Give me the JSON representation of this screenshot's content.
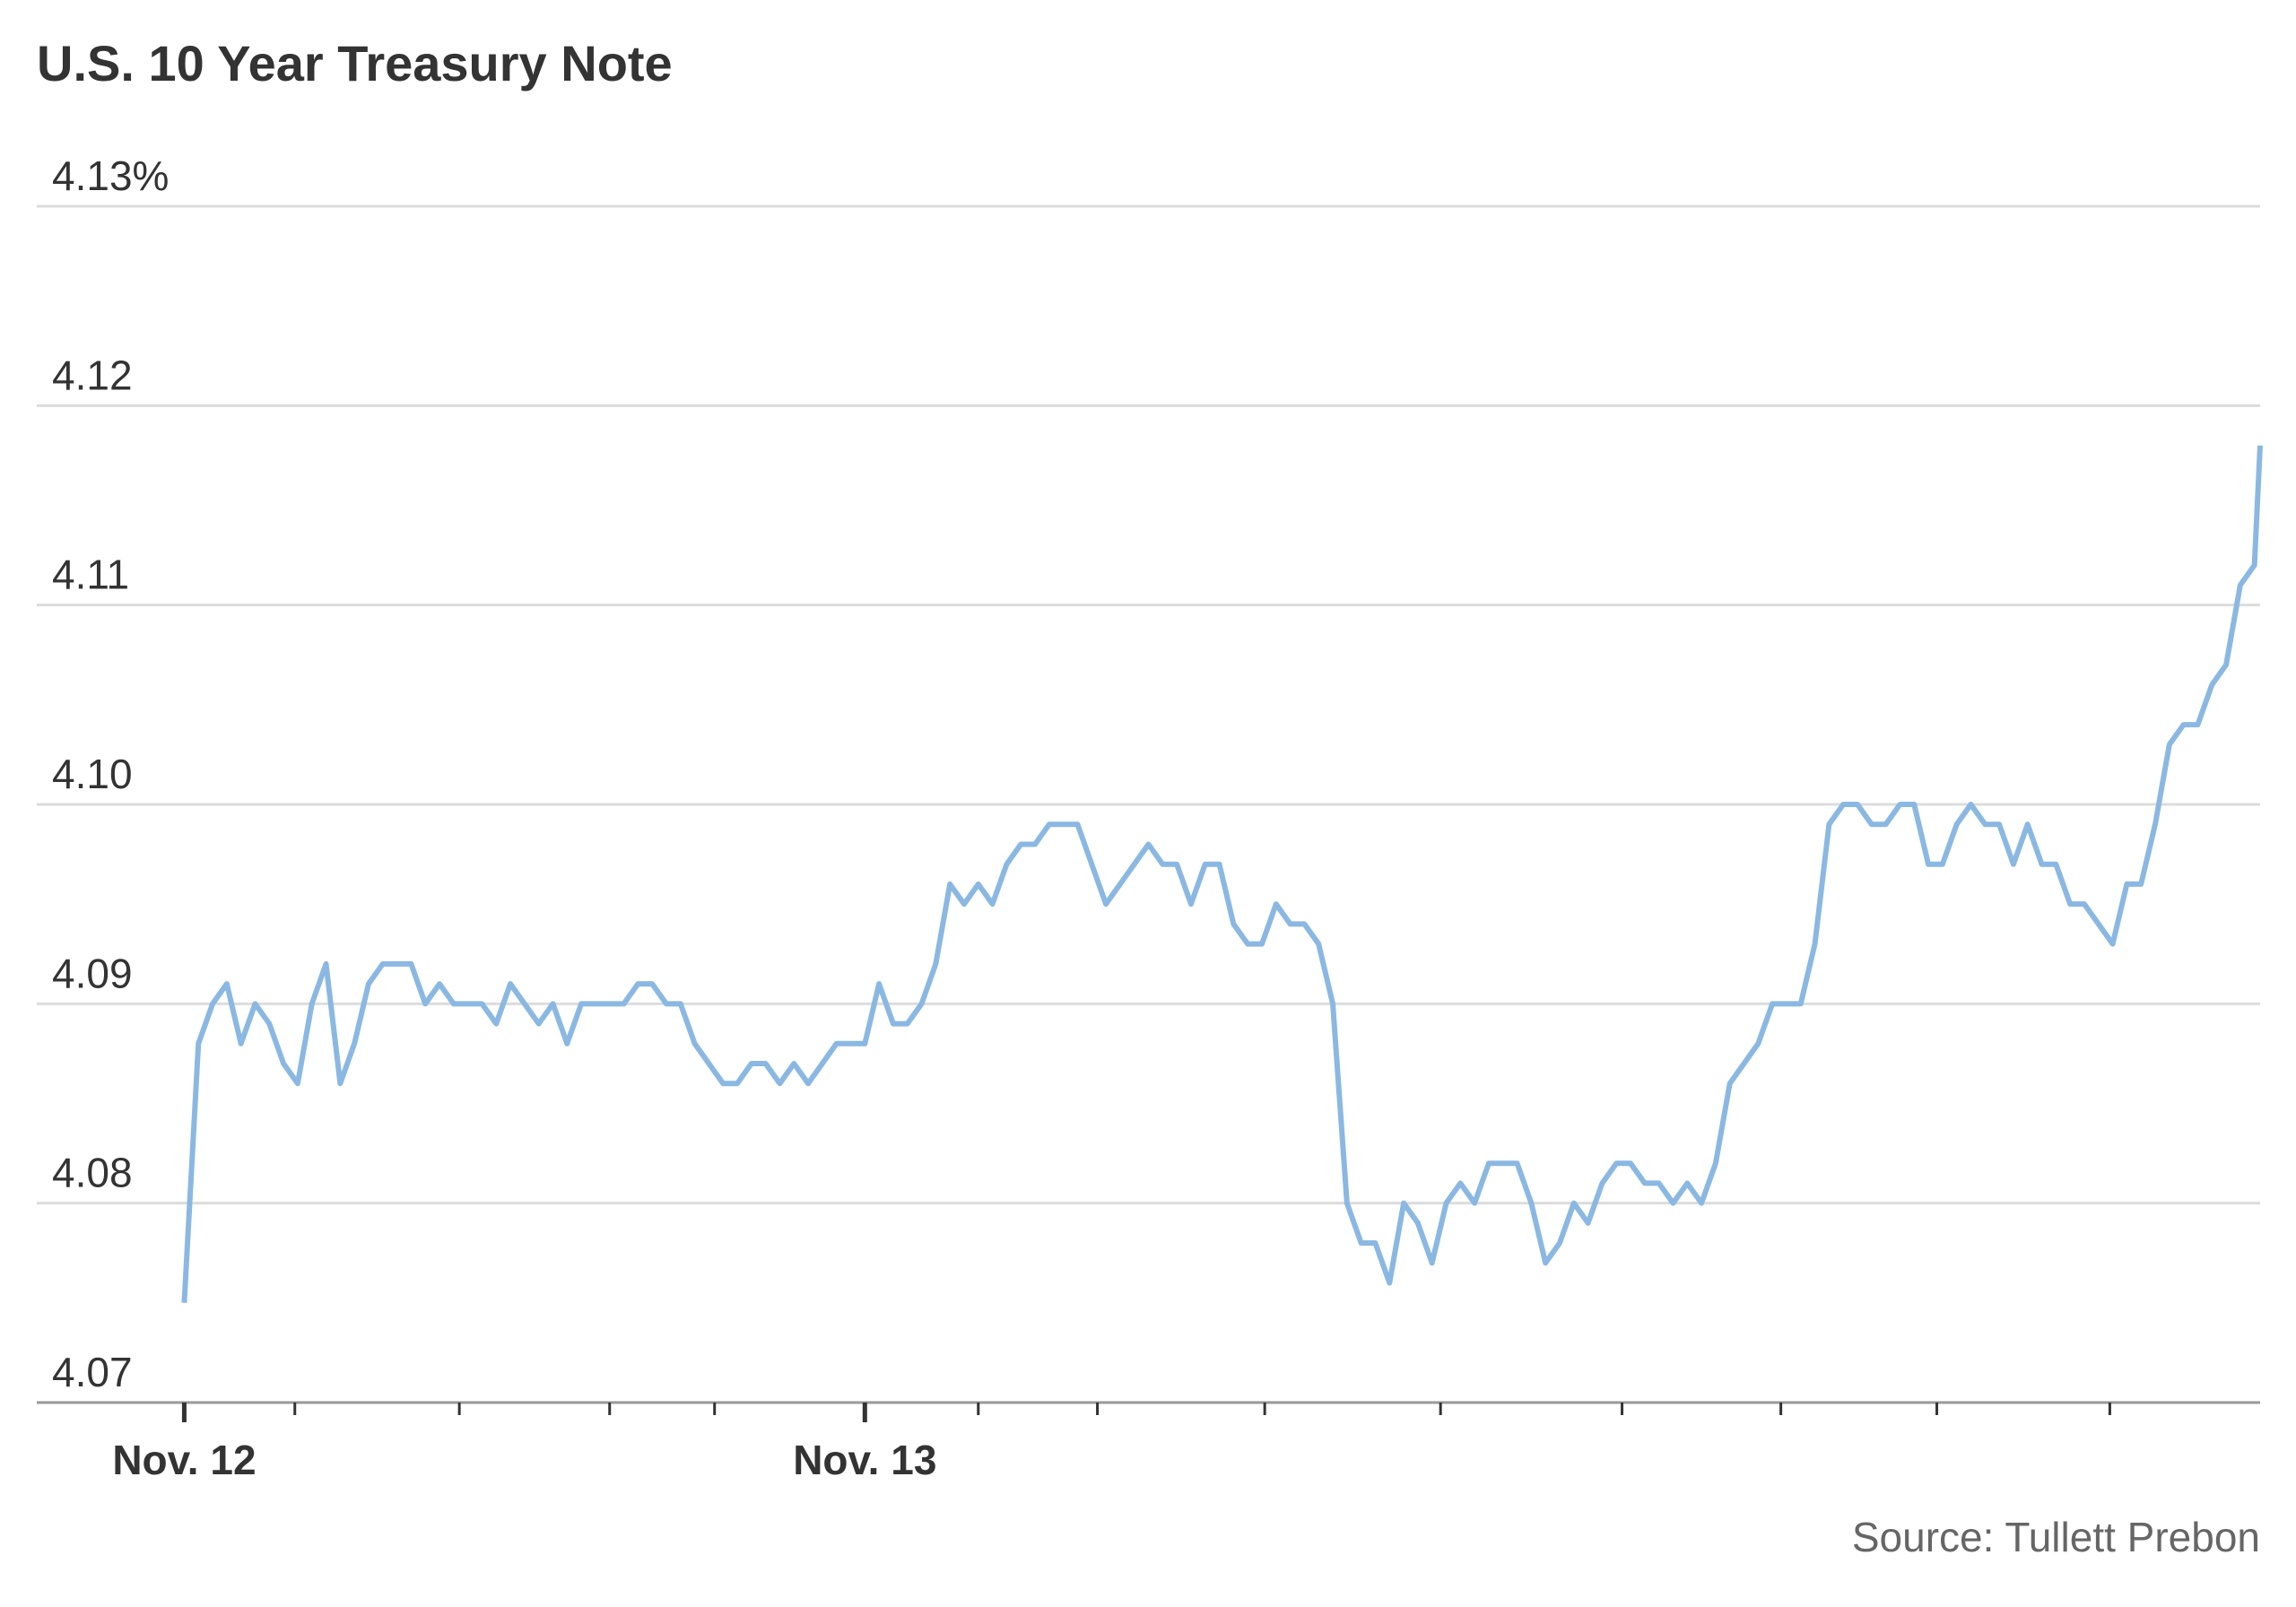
{
  "chart_data": {
    "type": "line",
    "title": "U.S. 10 Year Treasury Note",
    "source": "Source: Tullett Prebon",
    "x": [
      0,
      0.5,
      1,
      1.5,
      2,
      2.5,
      3,
      3.5,
      4,
      4.5,
      5,
      5.5,
      6,
      6.5,
      7,
      7.5,
      8,
      8.5,
      9,
      9.5,
      10,
      10.5,
      11,
      11.5,
      12,
      12.5,
      13,
      13.5,
      14,
      14.5,
      15,
      15.5,
      16,
      16.5,
      17,
      17.5,
      18,
      18.5,
      19,
      19.5,
      20,
      20.5,
      21,
      21.5,
      22,
      22.5,
      23,
      23.5,
      24,
      24.5,
      25,
      25.5,
      26,
      26.5,
      27,
      27.5,
      28,
      28.5,
      29,
      29.5,
      30,
      30.5,
      31,
      31.5,
      32,
      32.5,
      33,
      33.5,
      34,
      34.5,
      35,
      35.5,
      36,
      36.5,
      37,
      37.5,
      38,
      38.5,
      39,
      39.5,
      40,
      40.5,
      41,
      41.5,
      42,
      42.5,
      43,
      43.5,
      44,
      44.5,
      45,
      45.5,
      46,
      46.5,
      47,
      47.5,
      48,
      48.5,
      49,
      49.5,
      50,
      50.5,
      51,
      51.5,
      52,
      52.5,
      53,
      53.5,
      54,
      54.5,
      55,
      55.5,
      56,
      56.5,
      57,
      57.5,
      58,
      58.5,
      59,
      59.5,
      60,
      60.5,
      61,
      61.5,
      62,
      62.5,
      63,
      63.5,
      64,
      64.5,
      65,
      65.5,
      66,
      66.5,
      67,
      67.5,
      68,
      68.5,
      69,
      69.5,
      70,
      70.5,
      71,
      71.5,
      72,
      72.5,
      73,
      73.2
    ],
    "series": [
      {
        "name": "U.S. 10 Year Treasury Note",
        "color": "#8ab8e2",
        "values": [
          4.075,
          4.088,
          4.09,
          4.091,
          4.088,
          4.09,
          4.089,
          4.087,
          4.086,
          4.09,
          4.092,
          4.086,
          4.088,
          4.091,
          4.092,
          4.092,
          4.092,
          4.09,
          4.091,
          4.09,
          4.09,
          4.09,
          4.089,
          4.091,
          4.09,
          4.089,
          4.09,
          4.088,
          4.09,
          4.09,
          4.09,
          4.09,
          4.091,
          4.091,
          4.09,
          4.09,
          4.088,
          4.087,
          4.086,
          4.086,
          4.087,
          4.087,
          4.086,
          4.087,
          4.086,
          4.087,
          4.088,
          4.088,
          4.088,
          4.091,
          4.089,
          4.089,
          4.09,
          4.092,
          4.096,
          4.095,
          4.096,
          4.095,
          4.097,
          4.098,
          4.098,
          4.099,
          4.099,
          4.099,
          4.097,
          4.095,
          4.096,
          4.097,
          4.098,
          4.097,
          4.097,
          4.095,
          4.097,
          4.097,
          4.094,
          4.093,
          4.093,
          4.095,
          4.094,
          4.094,
          4.093,
          4.09,
          4.08,
          4.078,
          4.078,
          4.076,
          4.08,
          4.079,
          4.077,
          4.08,
          4.081,
          4.08,
          4.082,
          4.082,
          4.082,
          4.08,
          4.077,
          4.078,
          4.08,
          4.079,
          4.081,
          4.082,
          4.082,
          4.081,
          4.081,
          4.08,
          4.081,
          4.08,
          4.082,
          4.086,
          4.087,
          4.088,
          4.09,
          4.09,
          4.09,
          4.093,
          4.099,
          4.1,
          4.1,
          4.099,
          4.099,
          4.1,
          4.1,
          4.097,
          4.097,
          4.099,
          4.1,
          4.099,
          4.099,
          4.097,
          4.099,
          4.097,
          4.097,
          4.095,
          4.095,
          4.094,
          4.093,
          4.096,
          4.096,
          4.099,
          4.103,
          4.104,
          4.104,
          4.106,
          4.107,
          4.111,
          4.112,
          4.118
        ]
      }
    ],
    "xlim": [
      -5.2,
      73.2
    ],
    "xticks": [
      {
        "value": 0,
        "label": "Nov. 12"
      },
      {
        "value": 24,
        "label": "Nov. 13"
      }
    ],
    "xminor_ticks": [
      3.9,
      9.7,
      15,
      18.7,
      28,
      32.2,
      38.1,
      44.3,
      50.7,
      56.3,
      61.8,
      67.9
    ],
    "ylim": [
      4.07,
      4.13
    ],
    "yticks": [
      4.07,
      4.08,
      4.09,
      {
        "value": 4.1,
        "label": "4.10"
      },
      4.11,
      4.12,
      {
        "value": 4.13,
        "label": "4.13%"
      }
    ],
    "grid": true
  }
}
